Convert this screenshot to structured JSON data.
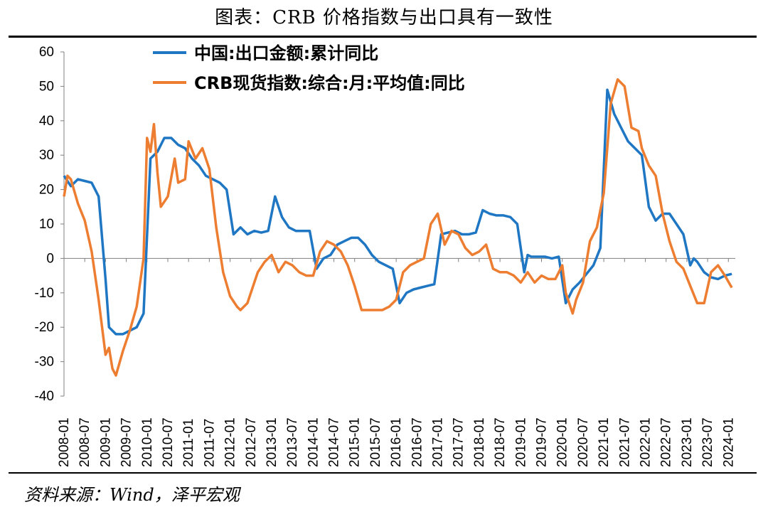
{
  "title": "图表：CRB 价格指数与出口具有一致性",
  "source": "资料来源：Wind，泽平宏观",
  "colors": {
    "series1": "#1f77c4",
    "series2": "#ed7d31"
  },
  "chart_data": {
    "type": "line",
    "title": "图表：CRB 价格指数与出口具有一致性",
    "ylim": [
      -40,
      60
    ],
    "yticks": [
      "60",
      "50",
      "40",
      "30",
      "20",
      "10",
      "0",
      "-10",
      "-20",
      "-30",
      "-40"
    ],
    "xlim": [
      "2008-01",
      "2024-03"
    ],
    "xticks": [
      "2008-01",
      "2008-07",
      "2009-01",
      "2009-07",
      "2010-01",
      "2010-07",
      "2011-01",
      "2011-07",
      "2012-01",
      "2012-07",
      "2013-01",
      "2013-07",
      "2014-01",
      "2014-07",
      "2015-01",
      "2015-07",
      "2016-01",
      "2016-07",
      "2017-01",
      "2017-07",
      "2018-01",
      "2018-07",
      "2019-01",
      "2019-07",
      "2020-01",
      "2020-07",
      "2021-01",
      "2021-07",
      "2022-01",
      "2022-07",
      "2023-01",
      "2023-07",
      "2024-01"
    ],
    "legend_position": "top-left",
    "grid": false,
    "series": [
      {
        "name": "中国:出口金额:累计同比",
        "color": "#1f77c4",
        "points": [
          [
            "2008-01",
            24
          ],
          [
            "2008-03",
            21
          ],
          [
            "2008-05",
            23
          ],
          [
            "2008-07",
            22.5
          ],
          [
            "2008-09",
            22
          ],
          [
            "2008-11",
            18
          ],
          [
            "2009-01",
            -6
          ],
          [
            "2009-02",
            -20
          ],
          [
            "2009-04",
            -22
          ],
          [
            "2009-06",
            -22
          ],
          [
            "2009-08",
            -21
          ],
          [
            "2009-10",
            -20
          ],
          [
            "2009-12",
            -16
          ],
          [
            "2010-02",
            29
          ],
          [
            "2010-04",
            31
          ],
          [
            "2010-06",
            35
          ],
          [
            "2010-08",
            35
          ],
          [
            "2010-10",
            33
          ],
          [
            "2010-12",
            32
          ],
          [
            "2011-02",
            29
          ],
          [
            "2011-04",
            27
          ],
          [
            "2011-06",
            24
          ],
          [
            "2011-08",
            23
          ],
          [
            "2011-10",
            22
          ],
          [
            "2011-12",
            20
          ],
          [
            "2012-02",
            7
          ],
          [
            "2012-04",
            9
          ],
          [
            "2012-06",
            7
          ],
          [
            "2012-08",
            8
          ],
          [
            "2012-10",
            7.5
          ],
          [
            "2012-12",
            8
          ],
          [
            "2013-02",
            18
          ],
          [
            "2013-04",
            12
          ],
          [
            "2013-06",
            9
          ],
          [
            "2013-08",
            8
          ],
          [
            "2013-10",
            8
          ],
          [
            "2013-12",
            8
          ],
          [
            "2014-02",
            -3
          ],
          [
            "2014-04",
            0
          ],
          [
            "2014-06",
            1
          ],
          [
            "2014-08",
            4
          ],
          [
            "2014-10",
            5
          ],
          [
            "2014-12",
            6
          ],
          [
            "2015-02",
            6
          ],
          [
            "2015-04",
            4
          ],
          [
            "2015-06",
            1
          ],
          [
            "2015-08",
            -1
          ],
          [
            "2015-10",
            -2
          ],
          [
            "2015-12",
            -3
          ],
          [
            "2016-02",
            -13
          ],
          [
            "2016-04",
            -10
          ],
          [
            "2016-06",
            -9
          ],
          [
            "2016-08",
            -8.5
          ],
          [
            "2016-10",
            -8
          ],
          [
            "2016-12",
            -7.5
          ],
          [
            "2017-02",
            7
          ],
          [
            "2017-04",
            7.5
          ],
          [
            "2017-06",
            8
          ],
          [
            "2017-08",
            7
          ],
          [
            "2017-10",
            7
          ],
          [
            "2017-12",
            7.5
          ],
          [
            "2018-02",
            14
          ],
          [
            "2018-04",
            13
          ],
          [
            "2018-06",
            12.5
          ],
          [
            "2018-08",
            12.5
          ],
          [
            "2018-10",
            12
          ],
          [
            "2018-12",
            10
          ],
          [
            "2019-02",
            -4
          ],
          [
            "2019-03",
            1
          ],
          [
            "2019-04",
            0.5
          ],
          [
            "2019-06",
            0.5
          ],
          [
            "2019-08",
            0.5
          ],
          [
            "2019-10",
            0
          ],
          [
            "2019-12",
            0.5
          ],
          [
            "2020-02",
            -13
          ],
          [
            "2020-04",
            -9
          ],
          [
            "2020-06",
            -7
          ],
          [
            "2020-08",
            -4.5
          ],
          [
            "2020-10",
            -2
          ],
          [
            "2020-12",
            3
          ],
          [
            "2021-02",
            49
          ],
          [
            "2021-04",
            42
          ],
          [
            "2021-06",
            38
          ],
          [
            "2021-08",
            34
          ],
          [
            "2021-10",
            32
          ],
          [
            "2021-12",
            30
          ],
          [
            "2022-02",
            15
          ],
          [
            "2022-04",
            11
          ],
          [
            "2022-06",
            13
          ],
          [
            "2022-08",
            13
          ],
          [
            "2022-10",
            10
          ],
          [
            "2022-12",
            7
          ],
          [
            "2023-02",
            -2
          ],
          [
            "2023-03",
            0
          ],
          [
            "2023-04",
            -1
          ],
          [
            "2023-06",
            -4
          ],
          [
            "2023-08",
            -5.5
          ],
          [
            "2023-10",
            -6
          ],
          [
            "2023-12",
            -5
          ],
          [
            "2024-02",
            -4.5
          ]
        ]
      },
      {
        "name": "CRB现货指数:综合:月:平均值:同比",
        "color": "#ed7d31",
        "points": [
          [
            "2008-01",
            18
          ],
          [
            "2008-02",
            24
          ],
          [
            "2008-03",
            23
          ],
          [
            "2008-05",
            16
          ],
          [
            "2008-07",
            11
          ],
          [
            "2008-09",
            2
          ],
          [
            "2008-11",
            -12
          ],
          [
            "2009-01",
            -28
          ],
          [
            "2009-02",
            -26
          ],
          [
            "2009-03",
            -32
          ],
          [
            "2009-04",
            -34
          ],
          [
            "2009-06",
            -27
          ],
          [
            "2009-08",
            -21
          ],
          [
            "2009-10",
            -14
          ],
          [
            "2009-12",
            0
          ],
          [
            "2010-01",
            35
          ],
          [
            "2010-02",
            31
          ],
          [
            "2010-03",
            39
          ],
          [
            "2010-04",
            25
          ],
          [
            "2010-05",
            15
          ],
          [
            "2010-07",
            18
          ],
          [
            "2010-09",
            29
          ],
          [
            "2010-10",
            22
          ],
          [
            "2010-12",
            23
          ],
          [
            "2011-01",
            34
          ],
          [
            "2011-03",
            29
          ],
          [
            "2011-05",
            32
          ],
          [
            "2011-07",
            26
          ],
          [
            "2011-09",
            9
          ],
          [
            "2011-11",
            -4
          ],
          [
            "2012-01",
            -11
          ],
          [
            "2012-03",
            -14
          ],
          [
            "2012-04",
            -15
          ],
          [
            "2012-06",
            -13
          ],
          [
            "2012-08",
            -7
          ],
          [
            "2012-09",
            -4
          ],
          [
            "2012-11",
            -1
          ],
          [
            "2013-01",
            1
          ],
          [
            "2013-03",
            -4
          ],
          [
            "2013-05",
            -1
          ],
          [
            "2013-07",
            -2
          ],
          [
            "2013-09",
            -4
          ],
          [
            "2013-11",
            -5
          ],
          [
            "2014-01",
            -5
          ],
          [
            "2014-03",
            2
          ],
          [
            "2014-05",
            5
          ],
          [
            "2014-07",
            4
          ],
          [
            "2014-09",
            2
          ],
          [
            "2014-11",
            -2
          ],
          [
            "2015-01",
            -8
          ],
          [
            "2015-03",
            -15
          ],
          [
            "2015-05",
            -15
          ],
          [
            "2015-07",
            -15
          ],
          [
            "2015-09",
            -15
          ],
          [
            "2015-11",
            -14
          ],
          [
            "2016-01",
            -12
          ],
          [
            "2016-03",
            -4
          ],
          [
            "2016-05",
            -2
          ],
          [
            "2016-07",
            -1
          ],
          [
            "2016-09",
            0
          ],
          [
            "2016-11",
            10
          ],
          [
            "2017-01",
            13
          ],
          [
            "2017-03",
            4
          ],
          [
            "2017-05",
            8
          ],
          [
            "2017-07",
            7
          ],
          [
            "2017-09",
            3
          ],
          [
            "2017-11",
            1
          ],
          [
            "2018-01",
            2
          ],
          [
            "2018-03",
            4
          ],
          [
            "2018-05",
            -3
          ],
          [
            "2018-07",
            -4
          ],
          [
            "2018-09",
            -4
          ],
          [
            "2018-11",
            -5
          ],
          [
            "2019-01",
            -7
          ],
          [
            "2019-03",
            -4
          ],
          [
            "2019-05",
            -7
          ],
          [
            "2019-07",
            -5
          ],
          [
            "2019-09",
            -6
          ],
          [
            "2019-11",
            -6
          ],
          [
            "2020-01",
            -2
          ],
          [
            "2020-02",
            -10
          ],
          [
            "2020-04",
            -16
          ],
          [
            "2020-05",
            -12
          ],
          [
            "2020-07",
            -7
          ],
          [
            "2020-09",
            5
          ],
          [
            "2020-11",
            9
          ],
          [
            "2021-01",
            19
          ],
          [
            "2021-03",
            45
          ],
          [
            "2021-05",
            52
          ],
          [
            "2021-07",
            50
          ],
          [
            "2021-09",
            38
          ],
          [
            "2021-11",
            37
          ],
          [
            "2021-12",
            32
          ],
          [
            "2022-02",
            27
          ],
          [
            "2022-04",
            24
          ],
          [
            "2022-06",
            13
          ],
          [
            "2022-08",
            5
          ],
          [
            "2022-10",
            -1
          ],
          [
            "2022-12",
            -3
          ],
          [
            "2023-02",
            -8
          ],
          [
            "2023-04",
            -13
          ],
          [
            "2023-06",
            -13
          ],
          [
            "2023-08",
            -4
          ],
          [
            "2023-10",
            -2
          ],
          [
            "2023-12",
            -5
          ],
          [
            "2024-02",
            -8.5
          ]
        ]
      }
    ]
  }
}
